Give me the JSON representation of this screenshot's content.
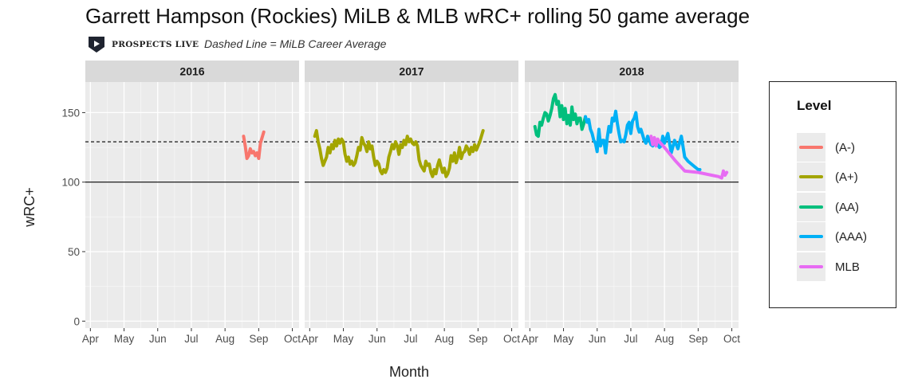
{
  "header": {
    "title": "Garrett Hampson (Rockies) MiLB & MLB wRC+ rolling 50 game average",
    "logo_text": "PROSPECTS LIVE",
    "subtitle": "Dashed Line = MiLB Career Average"
  },
  "chart_data": {
    "type": "line",
    "title": "Garrett Hampson (Rockies) MiLB & MLB wRC+ rolling 50 game average",
    "subtitle": "Dashed Line = MiLB Career Average",
    "xlabel": "Month",
    "ylabel": "wRC+",
    "ylim": [
      -5,
      172
    ],
    "yticks": [
      0,
      50,
      100,
      150
    ],
    "xticks": [
      "Apr",
      "May",
      "Jun",
      "Jul",
      "Aug",
      "Sep",
      "Oct"
    ],
    "xlim_months": [
      3.85,
      10.2
    ],
    "grid": true,
    "reference_lines": [
      {
        "value": 100,
        "style": "solid"
      },
      {
        "value": 129,
        "style": "dashed",
        "label": "MiLB Career Average"
      }
    ],
    "facets": [
      "2016",
      "2017",
      "2018"
    ],
    "legend": {
      "title": "Level",
      "position": "right",
      "items": [
        {
          "label": "(A-)",
          "color": "#F8766D"
        },
        {
          "label": "(A+)",
          "color": "#A3A500"
        },
        {
          "label": "(AA)",
          "color": "#00BF7D"
        },
        {
          "label": "(AAA)",
          "color": "#00B0F6"
        },
        {
          "label": "MLB",
          "color": "#E76BF3"
        }
      ]
    },
    "series": [
      {
        "facet": "2016",
        "name": "(A-)",
        "color": "#F8766D",
        "x": [
          8.55,
          8.6,
          8.65,
          8.7,
          8.75,
          8.8,
          8.85,
          8.9,
          8.95,
          9.0,
          9.05,
          9.1,
          9.15
        ],
        "y": [
          133,
          126,
          117,
          119,
          124,
          121,
          122,
          119,
          121,
          117,
          128,
          132,
          136
        ]
      },
      {
        "facet": "2017",
        "name": "(A+)",
        "color": "#A3A500",
        "x": [
          4.15,
          4.2,
          4.25,
          4.3,
          4.35,
          4.4,
          4.45,
          4.5,
          4.55,
          4.6,
          4.65,
          4.7,
          4.75,
          4.8,
          4.85,
          4.9,
          4.95,
          5.0,
          5.05,
          5.1,
          5.15,
          5.2,
          5.25,
          5.3,
          5.35,
          5.4,
          5.45,
          5.5,
          5.55,
          5.6,
          5.65,
          5.7,
          5.75,
          5.8,
          5.85,
          5.9,
          5.95,
          6.0,
          6.05,
          6.1,
          6.15,
          6.2,
          6.25,
          6.3,
          6.35,
          6.4,
          6.45,
          6.5,
          6.55,
          6.6,
          6.65,
          6.7,
          6.75,
          6.8,
          6.85,
          6.9,
          6.95,
          7.0,
          7.05,
          7.1,
          7.15,
          7.2,
          7.25,
          7.3,
          7.35,
          7.4,
          7.45,
          7.5,
          7.55,
          7.6,
          7.65,
          7.7,
          7.75,
          7.8,
          7.85,
          7.9,
          7.95,
          8.0,
          8.05,
          8.1,
          8.15,
          8.2,
          8.25,
          8.3,
          8.35,
          8.4,
          8.45,
          8.5,
          8.55,
          8.6,
          8.65,
          8.7,
          8.75,
          8.8,
          8.85,
          8.9,
          8.95,
          9.0,
          9.05,
          9.1,
          9.15
        ],
        "y": [
          133,
          137,
          129,
          124,
          117,
          112,
          115,
          118,
          125,
          121,
          127,
          124,
          130,
          126,
          131,
          128,
          131,
          129,
          120,
          115,
          118,
          113,
          115,
          112,
          114,
          119,
          125,
          123,
          132,
          128,
          126,
          122,
          129,
          124,
          126,
          118,
          112,
          115,
          113,
          108,
          106,
          109,
          107,
          110,
          118,
          122,
          127,
          124,
          129,
          126,
          120,
          127,
          125,
          130,
          127,
          133,
          129,
          131,
          128,
          127,
          129,
          126,
          116,
          112,
          110,
          108,
          115,
          112,
          113,
          107,
          104,
          109,
          106,
          112,
          116,
          111,
          107,
          110,
          104,
          106,
          110,
          119,
          115,
          121,
          114,
          118,
          125,
          117,
          121,
          122,
          126,
          124,
          120,
          125,
          122,
          127,
          123,
          126,
          129,
          133,
          137
        ]
      },
      {
        "facet": "2018",
        "name": "(AA)",
        "color": "#00BF7D",
        "x": [
          4.15,
          4.2,
          4.25,
          4.3,
          4.35,
          4.4,
          4.45,
          4.5,
          4.55,
          4.6,
          4.65,
          4.7,
          4.75,
          4.8,
          4.85,
          4.9,
          4.95,
          5.0,
          5.05,
          5.1,
          5.15,
          5.2,
          5.25,
          5.3,
          5.35,
          5.4,
          5.45,
          5.5,
          5.55,
          5.6,
          5.65
        ],
        "y": [
          140,
          134,
          133,
          143,
          141,
          146,
          150,
          149,
          144,
          148,
          153,
          160,
          163,
          156,
          158,
          147,
          155,
          145,
          153,
          142,
          148,
          141,
          154,
          145,
          149,
          142,
          146,
          146,
          138,
          142,
          147
        ]
      },
      {
        "facet": "2018",
        "name": "(AAA)",
        "color": "#00B0F6",
        "x": [
          5.65,
          5.7,
          5.75,
          5.8,
          5.85,
          5.9,
          5.95,
          6.0,
          6.05,
          6.1,
          6.15,
          6.2,
          6.25,
          6.3,
          6.35,
          6.4,
          6.45,
          6.5,
          6.55,
          6.6,
          6.65,
          6.7,
          6.75,
          6.8,
          6.85,
          6.9,
          6.95,
          7.0,
          7.05,
          7.1,
          7.15,
          7.2,
          7.25,
          7.3,
          7.35,
          7.4,
          7.45,
          7.5,
          7.55,
          7.6,
          7.65,
          7.7,
          7.75,
          7.8,
          7.85,
          7.9,
          7.95,
          8.0,
          8.1,
          8.2,
          8.3,
          8.4,
          8.5,
          8.6,
          8.7,
          8.8,
          8.9,
          9.0,
          9.05
        ],
        "y": [
          147,
          143,
          145,
          138,
          135,
          130,
          128,
          122,
          138,
          126,
          130,
          130,
          121,
          132,
          140,
          136,
          146,
          144,
          151,
          142,
          135,
          129,
          130,
          129,
          134,
          141,
          143,
          135,
          144,
          146,
          150,
          140,
          136,
          138,
          134,
          130,
          128,
          133,
          130,
          127,
          126,
          131,
          128,
          127,
          125,
          126,
          133,
          128,
          135,
          121,
          130,
          124,
          133,
          118,
          115,
          113,
          111,
          109,
          109
        ]
      },
      {
        "facet": "2018",
        "name": "MLB",
        "color": "#E76BF3",
        "x": [
          7.6,
          7.65,
          7.7,
          7.75,
          7.8,
          7.85,
          8.0,
          8.3,
          8.6,
          9.0,
          9.4,
          9.6,
          9.7,
          9.75,
          9.8,
          9.85
        ],
        "y": [
          133,
          127,
          132,
          126,
          131,
          129,
          125,
          116,
          108,
          107,
          105,
          104,
          103,
          108,
          105,
          107
        ]
      }
    ]
  }
}
